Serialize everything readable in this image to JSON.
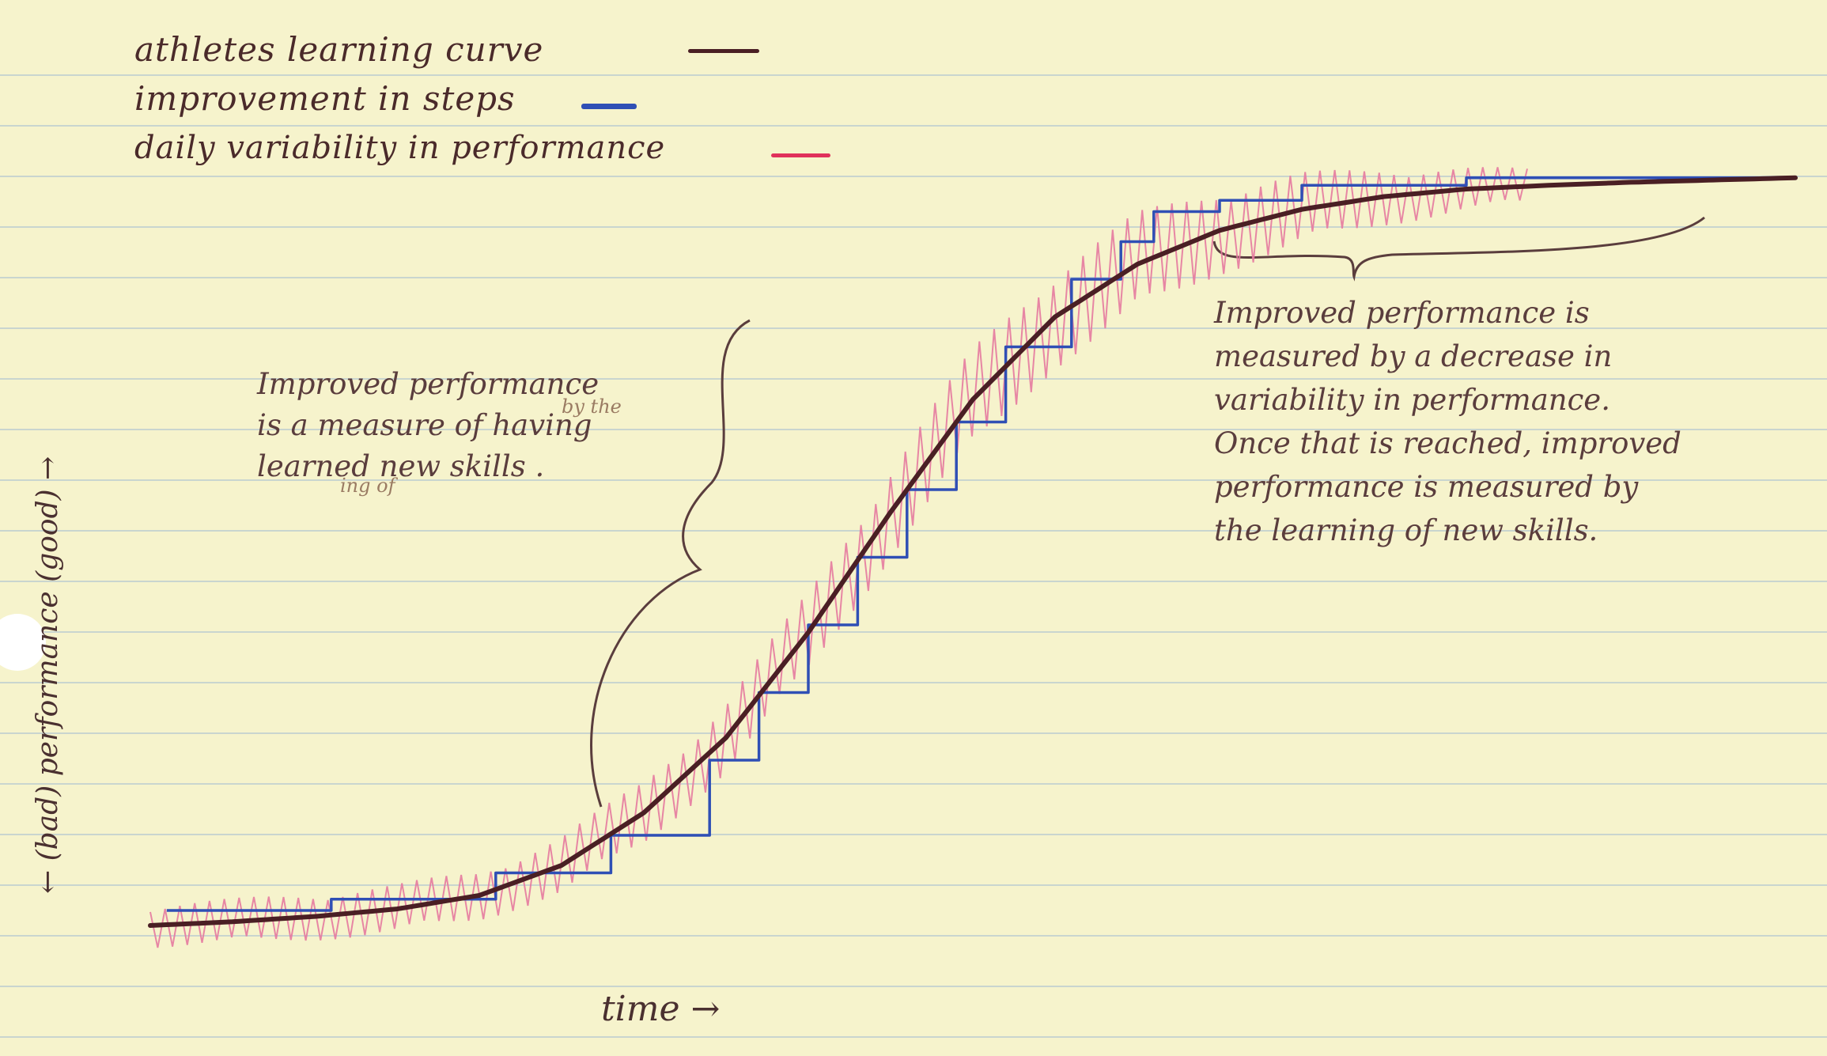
{
  "colors": {
    "paper": "#f6f3cc",
    "rule": "#c9d5cf",
    "curve": "#4a1f24",
    "steps": "#2f4fb5",
    "variability": "#e67aa0",
    "ink": "#5a3d3d"
  },
  "legend": [
    {
      "label": "athletes learning curve",
      "color": "#4a1f24"
    },
    {
      "label": "improvement in steps",
      "color": "#2f4fb5"
    },
    {
      "label": "daily variability in performance",
      "color": "#e0315b"
    }
  ],
  "annotations": {
    "left": {
      "lines": [
        "Improved performance",
        "is a measure of having",
        "learned new skills ."
      ],
      "insert_above": "by the",
      "insert_below": "ing of"
    },
    "right": {
      "lines": [
        "Improved performance is",
        "measured by a decrease in",
        "variability in performance.",
        "Once that is reached, improved",
        "performance is measured by",
        "the learning of new skills."
      ]
    }
  },
  "chart_data": {
    "type": "line",
    "title": "",
    "xlabel": "time →",
    "ylabel": "← (bad) performance (good) →",
    "x_ticks": [],
    "y_ticks": [],
    "grid": false,
    "xlim": [
      0,
      100
    ],
    "ylim": [
      0,
      100
    ],
    "legend_position": "top-left",
    "series": [
      {
        "name": "athletes learning curve",
        "x": [
          0,
          5,
          10,
          15,
          20,
          25,
          30,
          35,
          40,
          45,
          50,
          55,
          60,
          65,
          70,
          75,
          80,
          85,
          90,
          95,
          100
        ],
        "y": [
          0,
          0.5,
          1.2,
          2.2,
          4,
          8,
          15,
          25,
          39,
          55,
          70,
          81,
          88,
          92.5,
          95.3,
          97,
          98,
          98.5,
          98.9,
          99.2,
          99.5
        ]
      },
      {
        "name": "improvement in steps",
        "step_x": [
          1,
          11,
          21,
          28,
          34,
          37,
          40,
          43,
          46,
          49,
          52,
          56,
          59,
          61,
          65,
          70,
          80,
          100
        ],
        "step_y": [
          2,
          3.5,
          7,
          12,
          22,
          31,
          40,
          49,
          58,
          67,
          77,
          86,
          91,
          95,
          96.5,
          98.5,
          99.5
        ]
      },
      {
        "name": "daily variability in performance",
        "amplitude_x": [
          0,
          20,
          35,
          50,
          60,
          70,
          80,
          90
        ],
        "amplitude_y": [
          3,
          3.5,
          5,
          7,
          7,
          5,
          3,
          1.5
        ],
        "end_x": 84
      }
    ]
  }
}
